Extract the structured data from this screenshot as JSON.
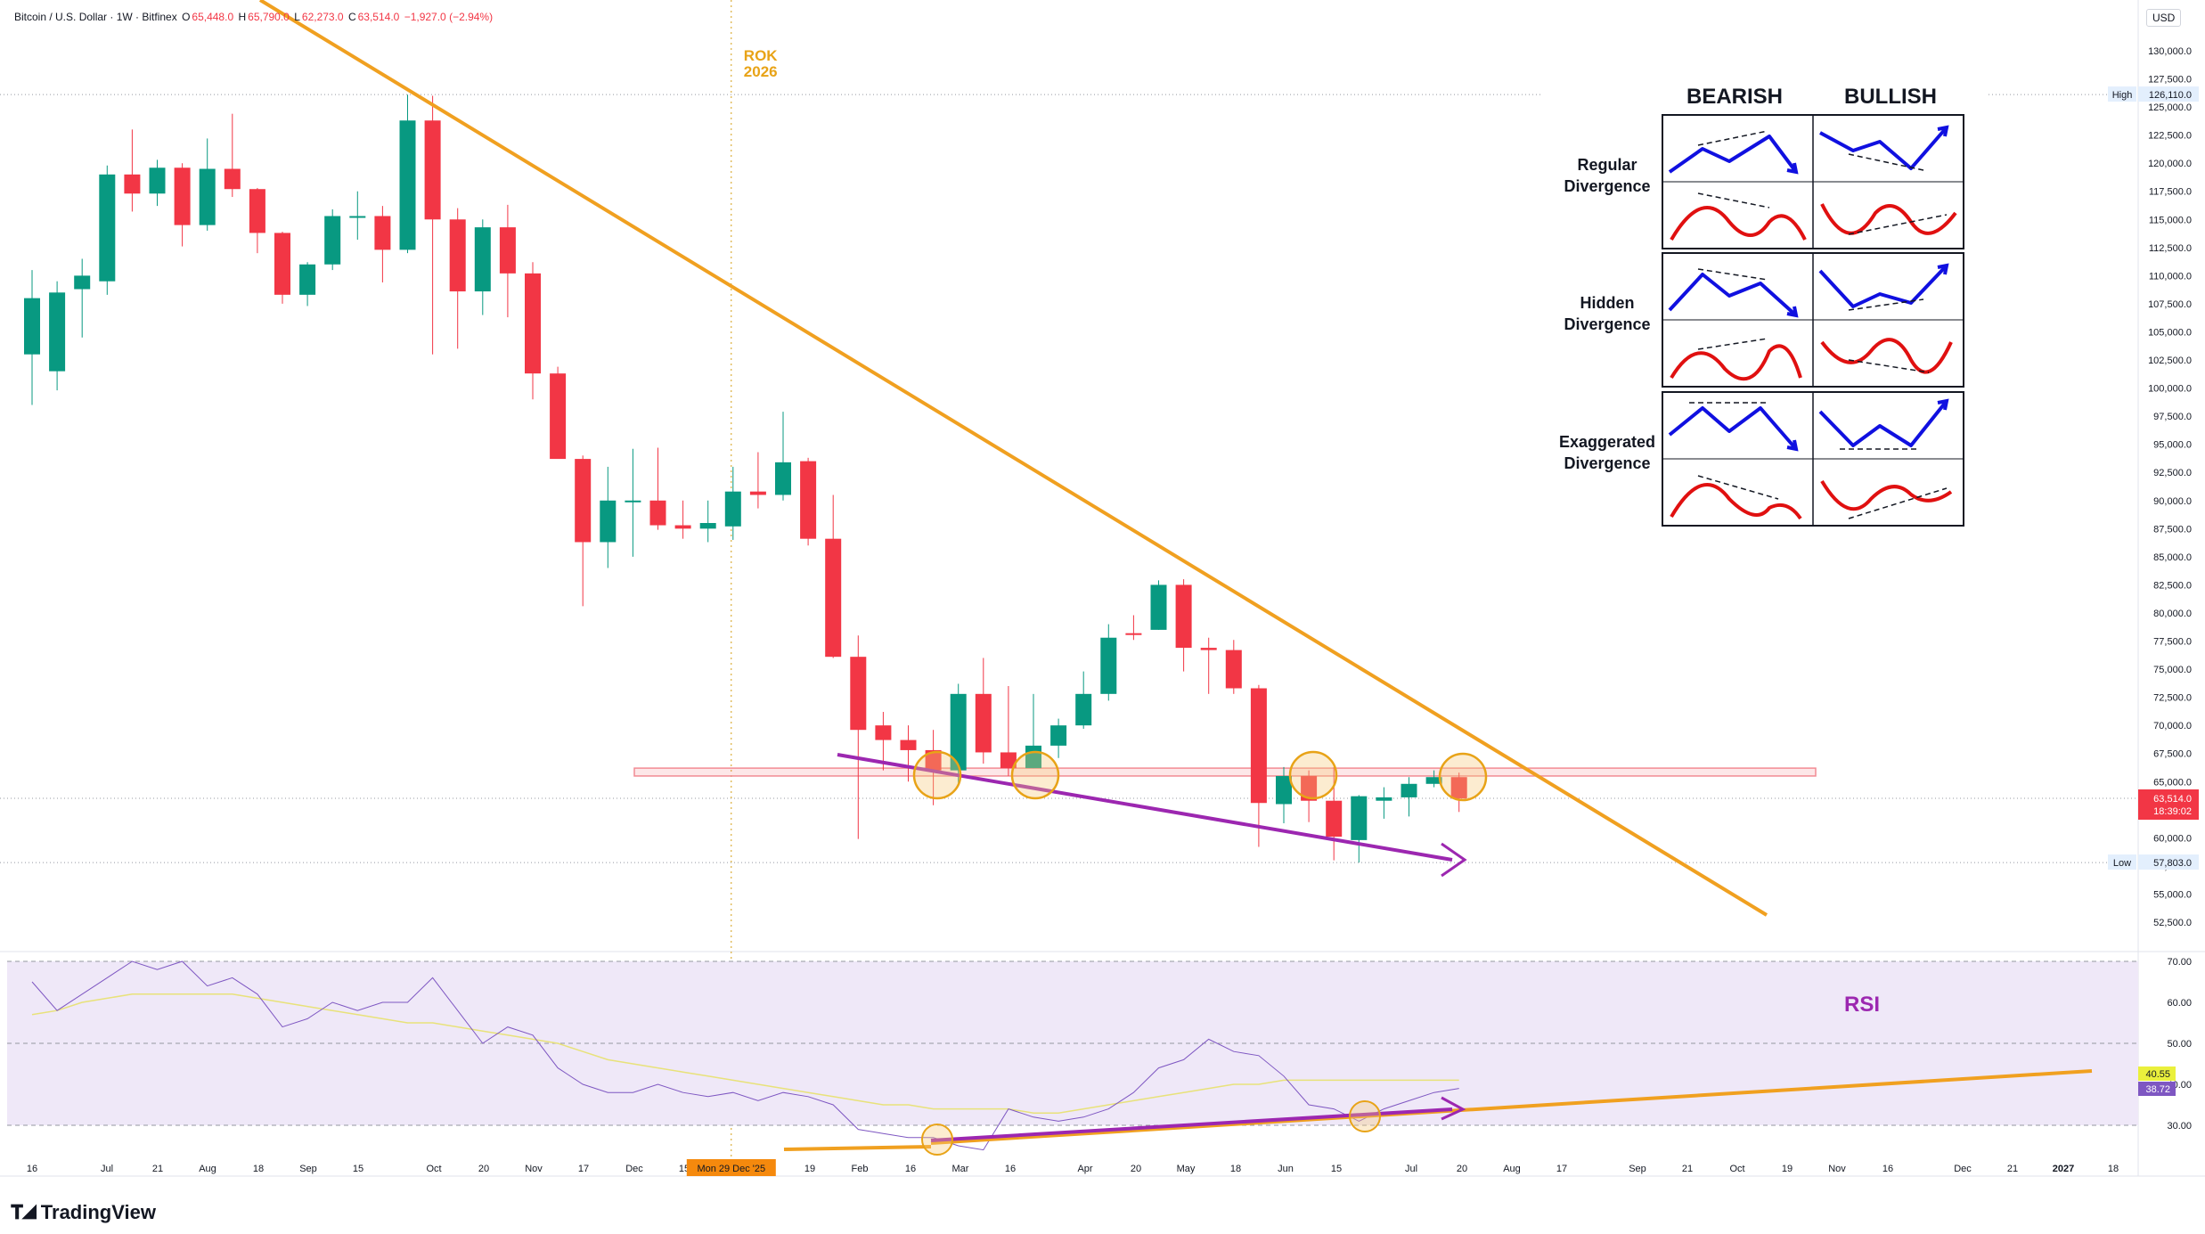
{
  "header": {
    "symbol": "Bitcoin / U.S. Dollar · 1W · Bitfinex",
    "o_label": "O",
    "o_value": "65,448.0",
    "h_label": "H",
    "h_value": "65,790.0",
    "l_label": "L",
    "l_value": "62,273.0",
    "c_label": "C",
    "c_value": "63,514.0",
    "change": "−1,927.0 (−2.94%)"
  },
  "currency_button": "USD",
  "price_axis": {
    "ticks": [
      "130,000.0",
      "127,500.0",
      "125,000.0",
      "122,500.0",
      "120,000.0",
      "117,500.0",
      "115,000.0",
      "112,500.0",
      "110,000.0",
      "107,500.0",
      "105,000.0",
      "102,500.0",
      "100,000.0",
      "97,500.0",
      "95,000.0",
      "92,500.0",
      "90,000.0",
      "87,500.0",
      "85,000.0",
      "82,500.0",
      "80,000.0",
      "77,500.0",
      "75,000.0",
      "72,500.0",
      "70,000.0",
      "67,500.0",
      "65,000.0",
      "62,500.0",
      "60,000.0",
      "57,500.0",
      "55,000.0",
      "52,500.0"
    ],
    "high_label": "High",
    "high_value": "126,110.0",
    "low_label": "Low",
    "low_value": "57,803.0",
    "last_price": "63,514.0",
    "countdown": "18:39:02"
  },
  "rsi_axis": {
    "ticks": [
      "70.00",
      "60.00",
      "50.00",
      "40.00",
      "30.00"
    ],
    "ma_value": "40.55",
    "rsi_value": "38.72",
    "title": "RSI"
  },
  "time_axis": {
    "labels": [
      "16",
      "Jul",
      "21",
      "Aug",
      "18",
      "Sep",
      "15",
      "Oct",
      "20",
      "Nov",
      "17",
      "Dec",
      "15",
      "19",
      "Feb",
      "16",
      "Mar",
      "16",
      "Apr",
      "20",
      "May",
      "18",
      "Jun",
      "15",
      "Jul",
      "20",
      "Aug",
      "17",
      "Sep",
      "21",
      "Oct",
      "19",
      "Nov",
      "16",
      "Dec",
      "21",
      "2027",
      "18"
    ],
    "cursor_label": "Mon 29 Dec '25"
  },
  "annotation": {
    "line1": "ROK",
    "line2": "2026"
  },
  "divergence_table": {
    "col_bearish": "BEARISH",
    "col_bullish": "BULLISH",
    "rows": [
      {
        "line1": "Regular",
        "line2": "Divergence"
      },
      {
        "line1": "Hidden",
        "line2": "Divergence"
      },
      {
        "line1": "Exaggerated",
        "line2": "Divergence"
      }
    ]
  },
  "brand": "TradingView",
  "colors": {
    "up": "#089981",
    "down": "#f23645",
    "trendline": "#f0a020",
    "purple": "#9c27b0",
    "rsi_line": "#7e57c2",
    "rsi_ma": "#e8e27a",
    "rsi_band": "#efe8f8",
    "blue": "#1010e0",
    "red": "#e01010"
  },
  "chart_data": {
    "type": "candlestick",
    "interval": "1W",
    "candles": [
      {
        "o": 103000,
        "h": 110500,
        "l": 98500,
        "c": 108000
      },
      {
        "o": 101500,
        "h": 109500,
        "l": 99800,
        "c": 108500
      },
      {
        "o": 108800,
        "h": 111500,
        "l": 104500,
        "c": 110000
      },
      {
        "o": 109500,
        "h": 119800,
        "l": 108300,
        "c": 119000
      },
      {
        "o": 119000,
        "h": 123000,
        "l": 115700,
        "c": 117300
      },
      {
        "o": 117300,
        "h": 120300,
        "l": 116200,
        "c": 119600
      },
      {
        "o": 119600,
        "h": 120000,
        "l": 112600,
        "c": 114500
      },
      {
        "o": 114500,
        "h": 122200,
        "l": 114000,
        "c": 119500
      },
      {
        "o": 119500,
        "h": 124400,
        "l": 117000,
        "c": 117700
      },
      {
        "o": 117700,
        "h": 117800,
        "l": 112000,
        "c": 113800
      },
      {
        "o": 113800,
        "h": 113900,
        "l": 107500,
        "c": 108300
      },
      {
        "o": 108300,
        "h": 111200,
        "l": 107300,
        "c": 111000
      },
      {
        "o": 111000,
        "h": 115900,
        "l": 110500,
        "c": 115300
      },
      {
        "o": 115300,
        "h": 117500,
        "l": 113200,
        "c": 115300
      },
      {
        "o": 115300,
        "h": 116200,
        "l": 109400,
        "c": 112300
      },
      {
        "o": 112300,
        "h": 126100,
        "l": 112000,
        "c": 123800
      },
      {
        "o": 123800,
        "h": 126000,
        "l": 103000,
        "c": 115000
      },
      {
        "o": 115000,
        "h": 116000,
        "l": 103500,
        "c": 108600
      },
      {
        "o": 108600,
        "h": 115000,
        "l": 106500,
        "c": 114300
      },
      {
        "o": 114300,
        "h": 116300,
        "l": 106300,
        "c": 110200
      },
      {
        "o": 110200,
        "h": 111200,
        "l": 99000,
        "c": 101300
      },
      {
        "o": 101300,
        "h": 101900,
        "l": 94000,
        "c": 93700
      },
      {
        "o": 93700,
        "h": 94000,
        "l": 80600,
        "c": 86300
      },
      {
        "o": 86300,
        "h": 93000,
        "l": 84000,
        "c": 90000
      },
      {
        "o": 90000,
        "h": 94600,
        "l": 85000,
        "c": 90000
      },
      {
        "o": 90000,
        "h": 94700,
        "l": 87400,
        "c": 87800
      },
      {
        "o": 87800,
        "h": 90000,
        "l": 86600,
        "c": 87500
      },
      {
        "o": 87500,
        "h": 90000,
        "l": 86300,
        "c": 88000
      },
      {
        "o": 87700,
        "h": 93000,
        "l": 86500,
        "c": 90800
      },
      {
        "o": 90800,
        "h": 94300,
        "l": 89300,
        "c": 90500
      },
      {
        "o": 90500,
        "h": 97900,
        "l": 90000,
        "c": 93400
      },
      {
        "o": 93500,
        "h": 93800,
        "l": 86000,
        "c": 86600
      },
      {
        "o": 86600,
        "h": 90500,
        "l": 76000,
        "c": 76100
      },
      {
        "o": 76100,
        "h": 78000,
        "l": 59900,
        "c": 69600
      },
      {
        "o": 70000,
        "h": 71200,
        "l": 66000,
        "c": 68700
      },
      {
        "o": 68700,
        "h": 70000,
        "l": 65000,
        "c": 67800
      },
      {
        "o": 67800,
        "h": 69600,
        "l": 62900,
        "c": 66000
      },
      {
        "o": 66000,
        "h": 73700,
        "l": 64700,
        "c": 72800
      },
      {
        "o": 72800,
        "h": 76000,
        "l": 66600,
        "c": 67600
      },
      {
        "o": 67600,
        "h": 73500,
        "l": 65500,
        "c": 66200
      },
      {
        "o": 66200,
        "h": 72800,
        "l": 66200,
        "c": 68200
      },
      {
        "o": 68200,
        "h": 70600,
        "l": 67100,
        "c": 70000
      },
      {
        "o": 70000,
        "h": 74800,
        "l": 69700,
        "c": 72800
      },
      {
        "o": 72800,
        "h": 79000,
        "l": 72200,
        "c": 77800
      },
      {
        "o": 78200,
        "h": 79800,
        "l": 77600,
        "c": 78100
      },
      {
        "o": 78500,
        "h": 82900,
        "l": 78500,
        "c": 82500
      },
      {
        "o": 82500,
        "h": 83000,
        "l": 74800,
        "c": 76900
      },
      {
        "o": 76900,
        "h": 77800,
        "l": 72800,
        "c": 76700
      },
      {
        "o": 76700,
        "h": 77600,
        "l": 72800,
        "c": 73300
      },
      {
        "o": 73300,
        "h": 73600,
        "l": 59200,
        "c": 63100
      },
      {
        "o": 63000,
        "h": 66300,
        "l": 61300,
        "c": 65500
      },
      {
        "o": 65500,
        "h": 66000,
        "l": 61400,
        "c": 63300
      },
      {
        "o": 63300,
        "h": 66300,
        "l": 58000,
        "c": 60100
      },
      {
        "o": 59800,
        "h": 63800,
        "l": 57800,
        "c": 63700
      },
      {
        "o": 63300,
        "h": 64500,
        "l": 61700,
        "c": 63600
      },
      {
        "o": 63600,
        "h": 65400,
        "l": 61900,
        "c": 64800
      },
      {
        "o": 64800,
        "h": 66000,
        "l": 64500,
        "c": 65400
      },
      {
        "o": 65400,
        "h": 65800,
        "l": 62300,
        "c": 63500
      }
    ],
    "rsi": [
      65,
      58,
      62,
      66,
      70,
      68,
      70,
      64,
      66,
      62,
      54,
      56,
      60,
      58,
      60,
      60,
      66,
      58,
      50,
      54,
      52,
      44,
      40,
      38,
      38,
      40,
      38,
      37,
      38,
      36,
      38,
      37,
      35,
      29,
      28,
      27,
      27,
      25,
      24,
      34,
      32,
      31,
      32,
      34,
      38,
      44,
      46,
      51,
      48,
      47,
      42,
      35,
      34,
      31,
      34,
      36,
      38,
      39
    ],
    "rsi_ma": [
      57,
      58,
      60,
      61,
      62,
      62,
      62,
      62,
      62,
      61,
      60,
      59,
      58,
      57,
      56,
      55,
      55,
      54,
      53,
      52,
      51,
      50,
      48,
      46,
      45,
      44,
      43,
      42,
      41,
      40,
      39,
      38,
      37,
      36,
      35,
      35,
      34,
      34,
      34,
      34,
      33,
      33,
      34,
      35,
      36,
      37,
      38,
      39,
      40,
      40,
      41,
      41,
      41,
      41,
      41,
      41,
      41,
      41
    ],
    "price_range": [
      52000,
      130500
    ],
    "rsi_range": [
      30,
      70
    ],
    "horizontal_zone": [
      65500,
      66200
    ],
    "price_high": 126110,
    "price_low": 57803,
    "last_price": 63514
  }
}
